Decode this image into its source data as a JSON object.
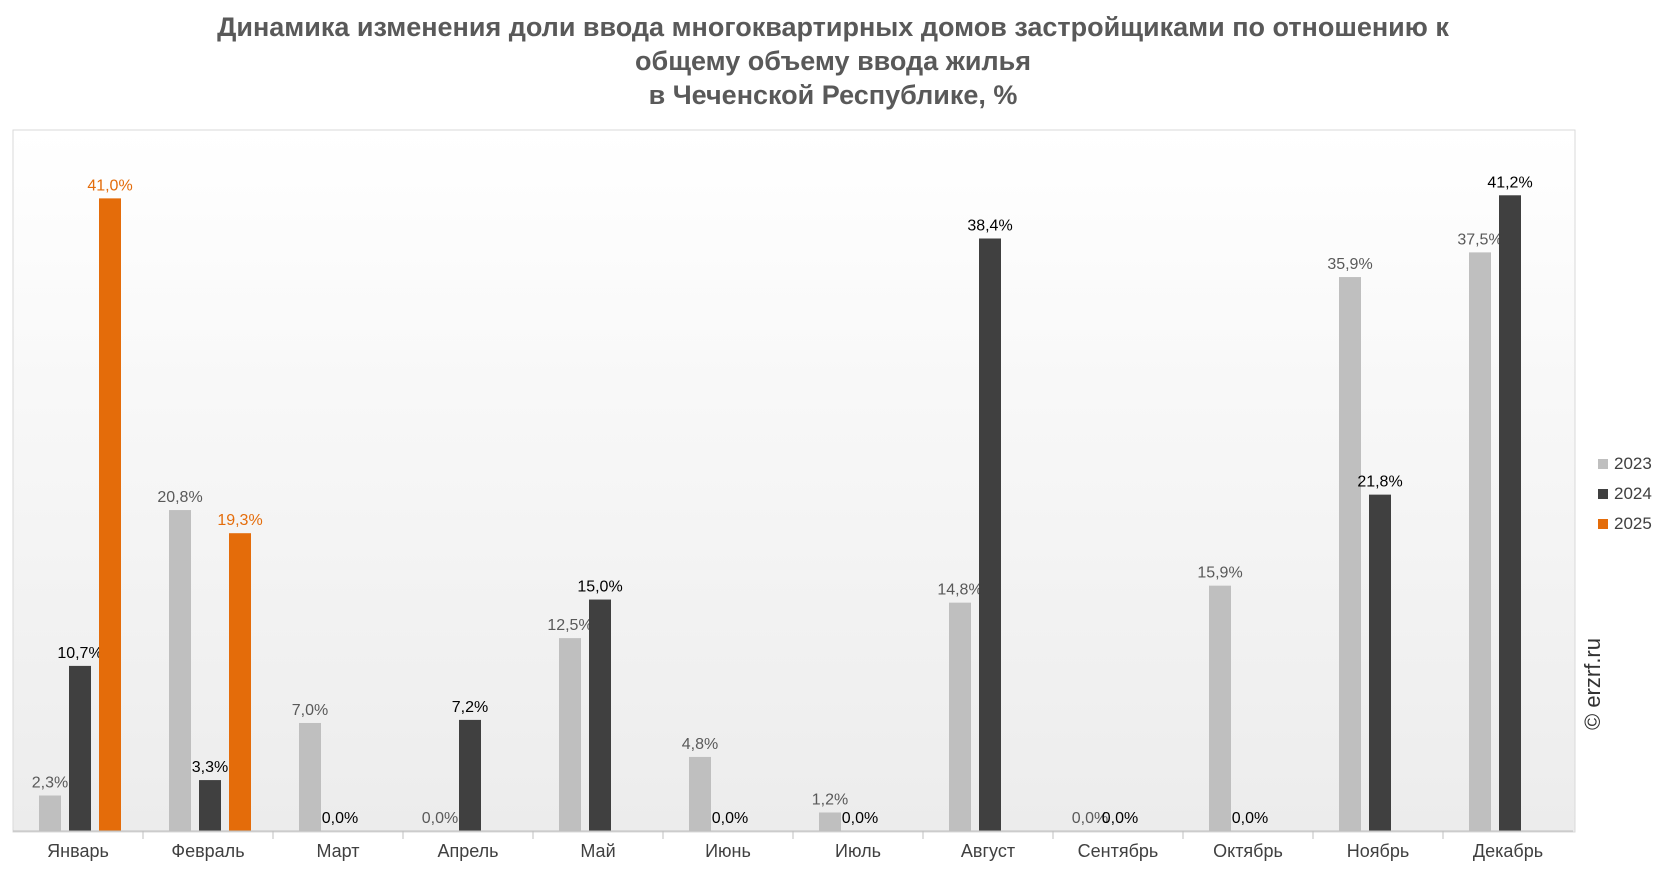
{
  "title": {
    "line1": "Динамика изменения доли ввода многоквартирных домов застройщиками по отношению к",
    "line2": "общему объему ввода жилья",
    "line3": "в Чеченской Республике, %"
  },
  "watermark": "© erzrf.ru",
  "colors": {
    "s2023": "#bfbfbf",
    "s2024": "#404040",
    "s2025": "#e46c0a"
  },
  "chart_data": {
    "type": "bar",
    "categories": [
      "Январь",
      "Февраль",
      "Март",
      "Апрель",
      "Май",
      "Июнь",
      "Июль",
      "Август",
      "Сентябрь",
      "Октябрь",
      "Ноябрь",
      "Декабрь"
    ],
    "series": [
      {
        "name": "2023",
        "values": [
          2.3,
          20.8,
          7.0,
          0.0,
          12.5,
          4.8,
          1.2,
          14.8,
          0.0,
          15.9,
          35.9,
          37.5
        ],
        "labels": [
          "2,3%",
          "20,8%",
          "7,0%",
          "0,0%",
          "12,5%",
          "4,8%",
          "1,2%",
          "14,8%",
          "0,0%",
          "15,9%",
          "35,9%",
          "37,5%"
        ]
      },
      {
        "name": "2024",
        "values": [
          10.7,
          3.3,
          0.0,
          7.2,
          15.0,
          0.0,
          0.0,
          38.4,
          0.0,
          0.0,
          21.8,
          41.2
        ],
        "labels": [
          "10,7%",
          "3,3%",
          "0,0%",
          "7,2%",
          "15,0%",
          "0,0%",
          "0,0%",
          "38,4%",
          "0,0%",
          "0,0%",
          "21,8%",
          "41,2%"
        ]
      },
      {
        "name": "2025",
        "values": [
          41.0,
          19.3,
          null,
          null,
          null,
          null,
          null,
          null,
          null,
          null,
          null,
          null
        ],
        "labels": [
          "41,0%",
          "19,3%",
          null,
          null,
          null,
          null,
          null,
          null,
          null,
          null,
          null,
          null
        ]
      }
    ],
    "ylim": [
      0,
      45
    ],
    "grid": false,
    "legend": "right"
  }
}
